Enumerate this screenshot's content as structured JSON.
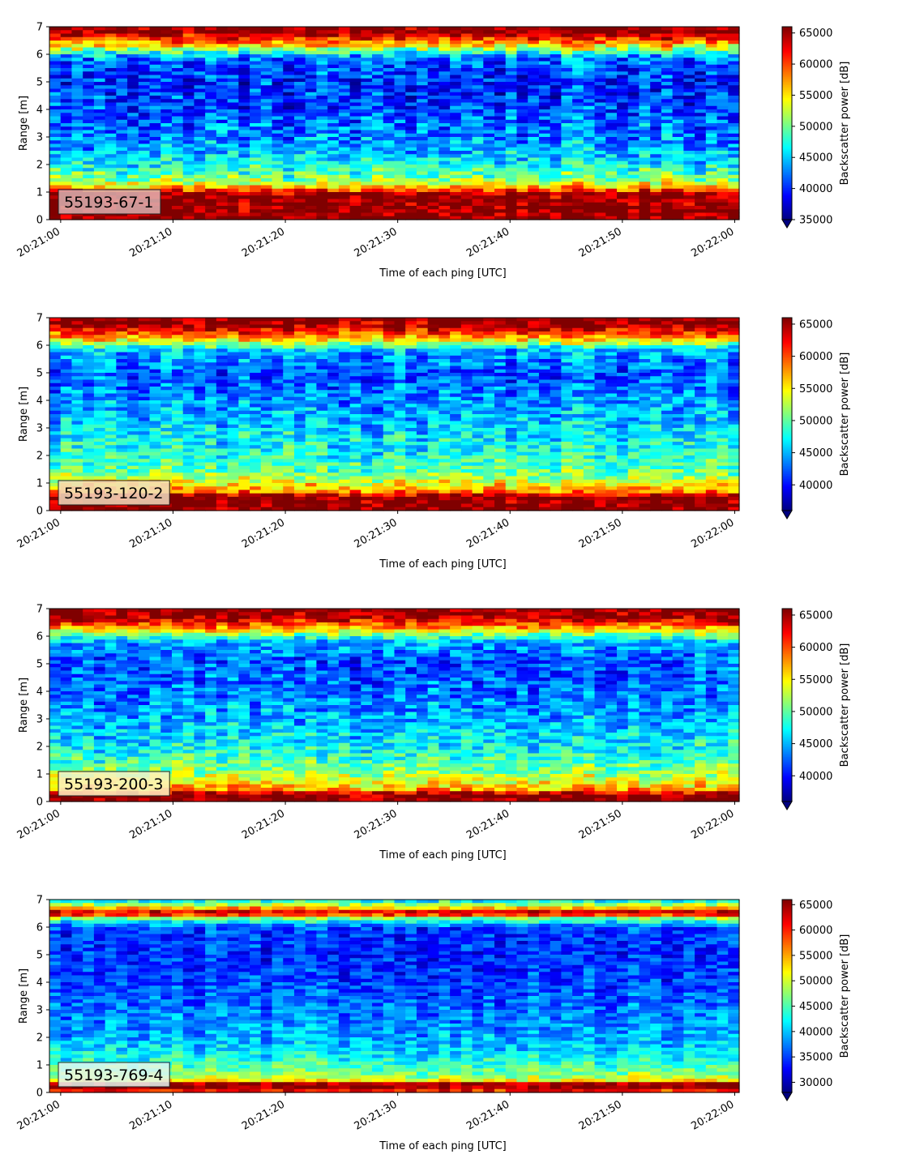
{
  "chart_data": [
    {
      "type": "heatmap",
      "panel_label": "55193-67-1",
      "label_box_color": "#dbb1b1",
      "xlabel": "Time of each ping [UTC]",
      "ylabel": "Range [m]",
      "colorbar_label": "Backscatter power [dB]",
      "x_ticks": [
        "20:21:00",
        "20:21:10",
        "20:21:20",
        "20:21:30",
        "20:21:40",
        "20:21:50",
        "20:22:00"
      ],
      "y_ticks": [
        0,
        1,
        2,
        3,
        4,
        5,
        6,
        7
      ],
      "colorbar_ticks": [
        35000,
        40000,
        45000,
        50000,
        55000,
        60000,
        65000
      ],
      "xlim_seconds": [
        -1,
        60.4
      ],
      "ylim": [
        0,
        7
      ],
      "clim": [
        35000,
        66000
      ],
      "colormap": "jet",
      "colorbar_extend": "min",
      "profile_range_m": [
        0.1,
        0.3,
        0.6,
        1.0,
        1.1,
        1.3,
        1.5,
        2.0,
        2.5,
        3.0,
        4.0,
        5.0,
        5.8,
        6.0,
        6.2,
        6.5,
        6.8,
        7.0
      ],
      "profile_power": [
        66000,
        66000,
        66000,
        65000,
        58000,
        54000,
        50000,
        47000,
        44000,
        43000,
        41000,
        40000,
        42000,
        46000,
        52000,
        60000,
        66000,
        66000
      ],
      "noise_std": 4000
    },
    {
      "type": "heatmap",
      "panel_label": "55193-120-2",
      "label_box_color": "#f2ddc0",
      "xlabel": "Time of each ping [UTC]",
      "ylabel": "Range [m]",
      "colorbar_label": "Backscatter power [dB]",
      "x_ticks": [
        "20:21:00",
        "20:21:10",
        "20:21:20",
        "20:21:30",
        "20:21:40",
        "20:21:50",
        "20:22:00"
      ],
      "y_ticks": [
        0,
        1,
        2,
        3,
        4,
        5,
        6,
        7
      ],
      "colorbar_ticks": [
        40000,
        45000,
        50000,
        55000,
        60000,
        65000
      ],
      "xlim_seconds": [
        -1,
        60.4
      ],
      "ylim": [
        0,
        7
      ],
      "clim": [
        36000,
        66000
      ],
      "colormap": "jet",
      "colorbar_extend": "min",
      "profile_range_m": [
        0.1,
        0.3,
        0.5,
        0.7,
        0.9,
        1.2,
        1.5,
        2.0,
        3.0,
        4.0,
        5.0,
        5.8,
        6.1,
        6.4,
        6.7,
        7.0
      ],
      "profile_power": [
        66000,
        66000,
        66000,
        58000,
        56000,
        52000,
        50000,
        48000,
        46000,
        44000,
        42000,
        45000,
        53000,
        60000,
        65000,
        66000
      ],
      "noise_std": 3500
    },
    {
      "type": "heatmap",
      "panel_label": "55193-200-3",
      "label_box_color": "#faf2c4",
      "xlabel": "Time of each ping [UTC]",
      "ylabel": "Range [m]",
      "colorbar_label": "Backscatter power [dB]",
      "x_ticks": [
        "20:21:00",
        "20:21:10",
        "20:21:20",
        "20:21:30",
        "20:21:40",
        "20:21:50",
        "20:22:00"
      ],
      "y_ticks": [
        0,
        1,
        2,
        3,
        4,
        5,
        6,
        7
      ],
      "colorbar_ticks": [
        40000,
        45000,
        50000,
        55000,
        60000,
        65000
      ],
      "xlim_seconds": [
        -1,
        60.4
      ],
      "ylim": [
        0,
        7
      ],
      "clim": [
        36000,
        66000
      ],
      "colormap": "jet",
      "colorbar_extend": "min",
      "profile_range_m": [
        0.1,
        0.25,
        0.45,
        0.7,
        1.0,
        1.5,
        2.0,
        3.0,
        4.0,
        5.0,
        5.8,
        6.1,
        6.4,
        6.7,
        7.0
      ],
      "profile_power": [
        66000,
        66000,
        57000,
        55000,
        52000,
        49000,
        47000,
        45000,
        43000,
        42000,
        45000,
        52000,
        60000,
        65000,
        66000
      ],
      "noise_std": 3500
    },
    {
      "type": "heatmap",
      "panel_label": "55193-769-4",
      "label_box_color": "#e4f6ee",
      "xlabel": "Time of each ping [UTC]",
      "ylabel": "Range [m]",
      "colorbar_label": "Backscatter power [dB]",
      "x_ticks": [
        "20:21:00",
        "20:21:10",
        "20:21:20",
        "20:21:30",
        "20:21:40",
        "20:21:50",
        "20:22:00"
      ],
      "y_ticks": [
        0,
        1,
        2,
        3,
        4,
        5,
        6,
        7
      ],
      "colorbar_ticks": [
        30000,
        35000,
        40000,
        45000,
        50000,
        55000,
        60000,
        65000
      ],
      "xlim_seconds": [
        -1,
        60.4
      ],
      "ylim": [
        0,
        7
      ],
      "clim": [
        28000,
        66000
      ],
      "colormap": "jet",
      "colorbar_extend": "min",
      "profile_range_m": [
        0.05,
        0.2,
        0.3,
        0.45,
        0.7,
        1.0,
        1.5,
        2.0,
        3.0,
        4.0,
        5.0,
        6.0,
        6.3,
        6.5,
        6.7,
        6.9,
        7.0
      ],
      "profile_power": [
        60000,
        66000,
        66000,
        50000,
        47000,
        44000,
        41000,
        39000,
        37000,
        35000,
        34000,
        35000,
        46000,
        65000,
        54000,
        44000,
        42000
      ],
      "noise_std": 3500
    }
  ]
}
